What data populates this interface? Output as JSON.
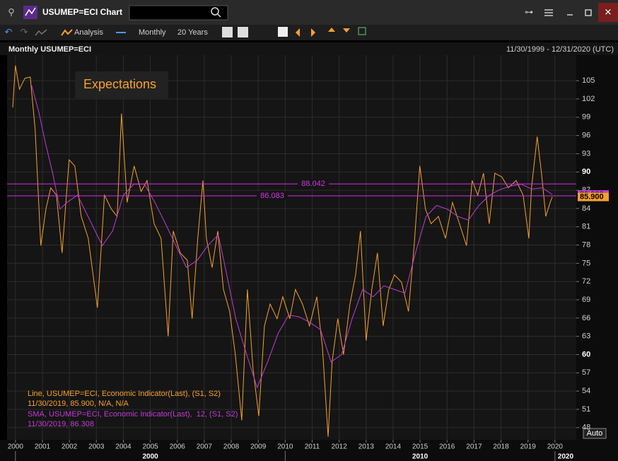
{
  "window": {
    "title": "USUMEP=ECI Chart"
  },
  "toolbar": {
    "analysis": "Analysis",
    "interval": "Monthly",
    "range": "20 Years"
  },
  "chart_header": {
    "title": "Monthly USUMEP=ECI",
    "date_range": "11/30/1999 - 12/31/2020 (UTC)"
  },
  "auto_button": "Auto",
  "chart_data": {
    "type": "line",
    "annotation": "Expectations",
    "xlim": [
      1999.69,
      2020.79
    ],
    "xticks": [
      2000,
      2001,
      2002,
      2003,
      2004,
      2005,
      2006,
      2007,
      2008,
      2009,
      2010,
      2011,
      2012,
      2013,
      2014,
      2015,
      2016,
      2017,
      2018,
      2019,
      2020
    ],
    "x_major_ticks": [
      2000,
      2010,
      2020
    ],
    "ylim": [
      46,
      109.2
    ],
    "yticks": [
      48,
      51,
      54,
      57,
      60,
      63,
      66,
      69,
      72,
      75,
      78,
      81,
      84,
      87,
      90,
      93,
      96,
      99,
      102,
      105
    ],
    "grid": true,
    "horizontal_lines": [
      {
        "value": 88.042,
        "color": "#d42ee6"
      },
      {
        "value": 86.083,
        "color": "#d42ee6"
      }
    ],
    "last_markers": [
      {
        "value": 86.308,
        "color": "#c33bd6"
      },
      {
        "value": 85.9,
        "label": "85.900",
        "color": "#f7a12b"
      }
    ],
    "series": [
      {
        "name": "Line, USUMEP=ECI, Economic Indicator(Last), (S1, S2)",
        "legend_values": "11/30/2019, 85.900, N/A, N/A",
        "color": "#f7a12b",
        "x": [
          1999.9,
          2000.0,
          2000.15,
          2000.35,
          2000.55,
          2000.73,
          2000.94,
          2001.13,
          2001.31,
          2001.52,
          2001.73,
          2001.99,
          2002.2,
          2002.44,
          2002.7,
          2003.04,
          2003.3,
          2003.56,
          2003.77,
          2003.93,
          2004.14,
          2004.4,
          2004.66,
          2004.88,
          2005.14,
          2005.4,
          2005.66,
          2005.85,
          2006.11,
          2006.37,
          2006.55,
          2006.76,
          2006.95,
          2007.08,
          2007.29,
          2007.5,
          2007.71,
          2007.94,
          2008.15,
          2008.39,
          2008.6,
          2008.81,
          2009.02,
          2009.23,
          2009.44,
          2009.7,
          2009.91,
          2010.17,
          2010.38,
          2010.64,
          2010.9,
          2011.17,
          2011.38,
          2011.59,
          2011.74,
          2011.95,
          2012.16,
          2012.4,
          2012.61,
          2012.79,
          2013.0,
          2013.21,
          2013.42,
          2013.63,
          2013.84,
          2014.05,
          2014.31,
          2014.57,
          2014.78,
          2014.99,
          2015.2,
          2015.41,
          2015.68,
          2015.94,
          2016.2,
          2016.46,
          2016.72,
          2016.93,
          2017.14,
          2017.35,
          2017.56,
          2017.77,
          2018.03,
          2018.27,
          2018.56,
          2018.82,
          2019.03,
          2019.13,
          2019.34,
          2019.5,
          2019.66,
          2019.82,
          2019.9
        ],
        "values": [
          100.6,
          107.5,
          103.6,
          105.4,
          105.6,
          97,
          77.9,
          83.9,
          87.4,
          86.2,
          76.7,
          92,
          91,
          82.7,
          79.1,
          67.7,
          86.2,
          83.9,
          82.7,
          99.6,
          85,
          91,
          86.8,
          88.6,
          81.5,
          79.1,
          63,
          80.3,
          76.7,
          75.5,
          65.9,
          79.1,
          88.6,
          79.1,
          74.3,
          80.3,
          70.7,
          67.1,
          60,
          49.2,
          70.7,
          57.6,
          49.9,
          64.7,
          68.3,
          65.9,
          69.5,
          65.9,
          70.7,
          68.3,
          64.7,
          69.5,
          61.2,
          46.5,
          58.8,
          65.9,
          60,
          68.3,
          73.1,
          80.3,
          62.3,
          70.7,
          76.7,
          64.7,
          70.7,
          73.1,
          71.9,
          67.1,
          77.9,
          91,
          83.9,
          81.5,
          82.7,
          79.1,
          85,
          81.5,
          77.9,
          88.6,
          86.2,
          89.8,
          81.5,
          89.8,
          89.2,
          87.4,
          88.6,
          86.2,
          79.1,
          87.4,
          95.8,
          89.8,
          82.7,
          85,
          85.9
        ]
      },
      {
        "name": "SMA, USUMEP=ECI, Economic Indicator(Last),  12, (S1, S2)",
        "legend_values": "11/30/2019, 86.308",
        "color": "#c33bd6",
        "x": [
          2000.6,
          2000.86,
          2001.12,
          2001.38,
          2001.65,
          2001.91,
          2002.3,
          2002.69,
          2003.22,
          2003.6,
          2004.0,
          2004.39,
          2004.78,
          2005.17,
          2005.56,
          2005.95,
          2006.34,
          2006.74,
          2007.13,
          2007.52,
          2007.78,
          2008.17,
          2008.57,
          2008.96,
          2009.35,
          2009.74,
          2010.13,
          2010.52,
          2010.91,
          2011.31,
          2011.7,
          2012.09,
          2012.48,
          2012.87,
          2013.26,
          2013.66,
          2014.05,
          2014.44,
          2014.83,
          2015.22,
          2015.61,
          2016.01,
          2016.4,
          2016.79,
          2017.18,
          2017.57,
          2017.96,
          2018.36,
          2018.75,
          2019.14,
          2019.53,
          2019.9
        ],
        "values": [
          104.2,
          100,
          94.6,
          89.8,
          83.9,
          85,
          86.2,
          82.7,
          77.9,
          80.3,
          86.2,
          88,
          88,
          85,
          81.5,
          77.9,
          74.3,
          75.5,
          77.9,
          79.7,
          74.3,
          65.9,
          60,
          54.6,
          58.8,
          63.5,
          66.5,
          66.2,
          65.3,
          64.1,
          58.8,
          60,
          65.9,
          70.7,
          69.5,
          71.3,
          70.7,
          70.1,
          76.7,
          82.7,
          84.5,
          83.9,
          82.7,
          82.1,
          84.5,
          86.2,
          87.1,
          87.7,
          88,
          87.2,
          87.4,
          86.308
        ]
      }
    ]
  }
}
